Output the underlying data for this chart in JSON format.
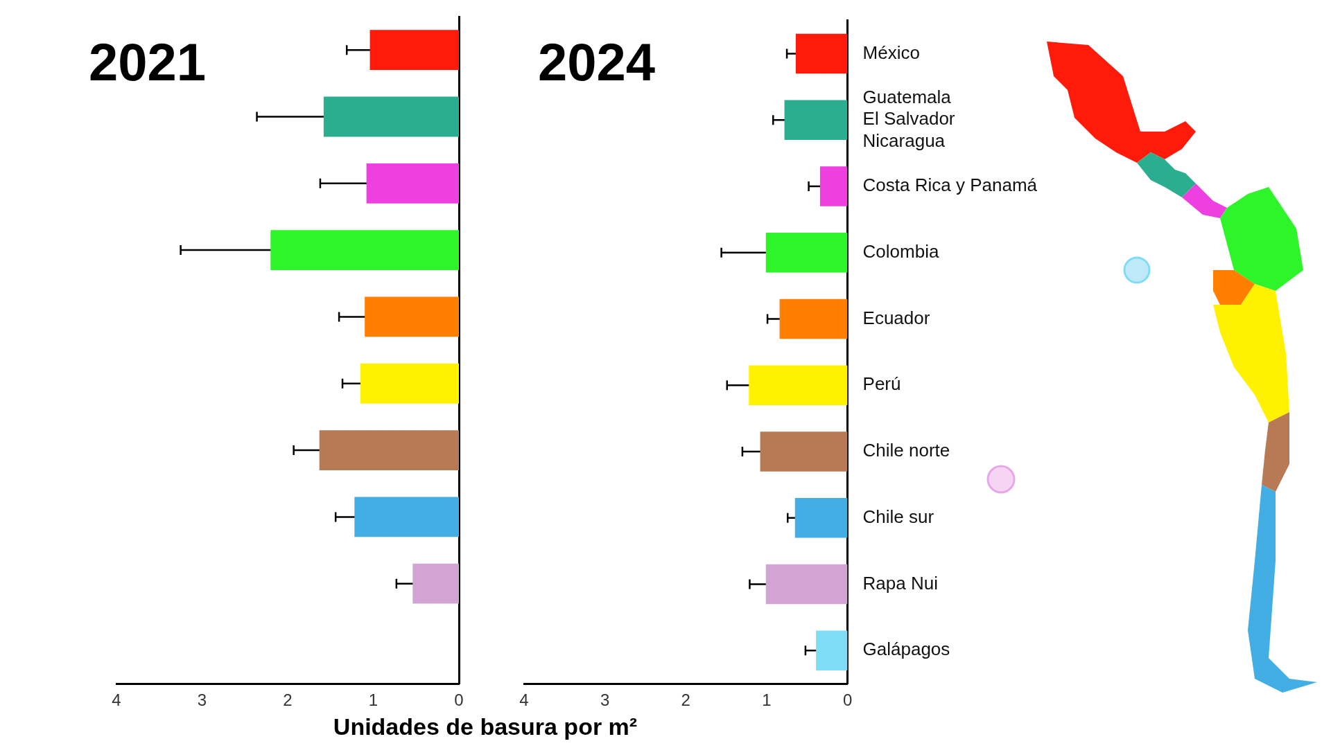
{
  "chart_data": [
    {
      "type": "bar",
      "orientation": "horizontal",
      "title": "2021",
      "xlabel": "Unidades de basura por m²",
      "categories": [
        null,
        null,
        null,
        null,
        null,
        null,
        null,
        null,
        null,
        null
      ],
      "values": [
        1.04,
        1.58,
        1.08,
        2.2,
        1.1,
        1.15,
        1.63,
        1.22,
        0.54,
        null
      ],
      "errors": [
        0.27,
        0.78,
        0.54,
        1.05,
        0.3,
        0.21,
        0.3,
        0.22,
        0.19,
        null
      ],
      "colors": [
        "#ff1a0a",
        "#2bae8f",
        "#ee3fe0",
        "#2ef52a",
        "#ff7f00",
        "#fff200",
        "#b87a55",
        "#42aee3",
        "#d2a4d4",
        "#7fdcf7"
      ],
      "xlim": [
        4,
        0
      ],
      "xticks": [
        4,
        3,
        2,
        1,
        0
      ],
      "tick_labels": "x"
    },
    {
      "type": "bar",
      "orientation": "horizontal",
      "title": "2024",
      "categories": [
        "México",
        "Guatemala\nEl Salvador\nNicaragua",
        "Costa Rica y Panamá",
        "Colombia",
        "Ecuador",
        "Perú",
        "Chile norte",
        "Chile sur",
        "Rapa Nui",
        "Galápagos"
      ],
      "values": [
        0.64,
        0.78,
        0.34,
        1.01,
        0.84,
        1.22,
        1.08,
        0.65,
        1.01,
        0.39
      ],
      "errors": [
        0.11,
        0.14,
        0.14,
        0.55,
        0.15,
        0.27,
        0.22,
        0.09,
        0.2,
        0.13
      ],
      "colors": [
        "#ff1a0a",
        "#2bae8f",
        "#ee3fe0",
        "#2ef52a",
        "#ff7f00",
        "#fff200",
        "#b87a55",
        "#42aee3",
        "#d2a4d4",
        "#7fdcf7"
      ],
      "xlim": [
        4,
        0
      ],
      "xticks": [
        4,
        3,
        2,
        1,
        0
      ]
    }
  ]
}
